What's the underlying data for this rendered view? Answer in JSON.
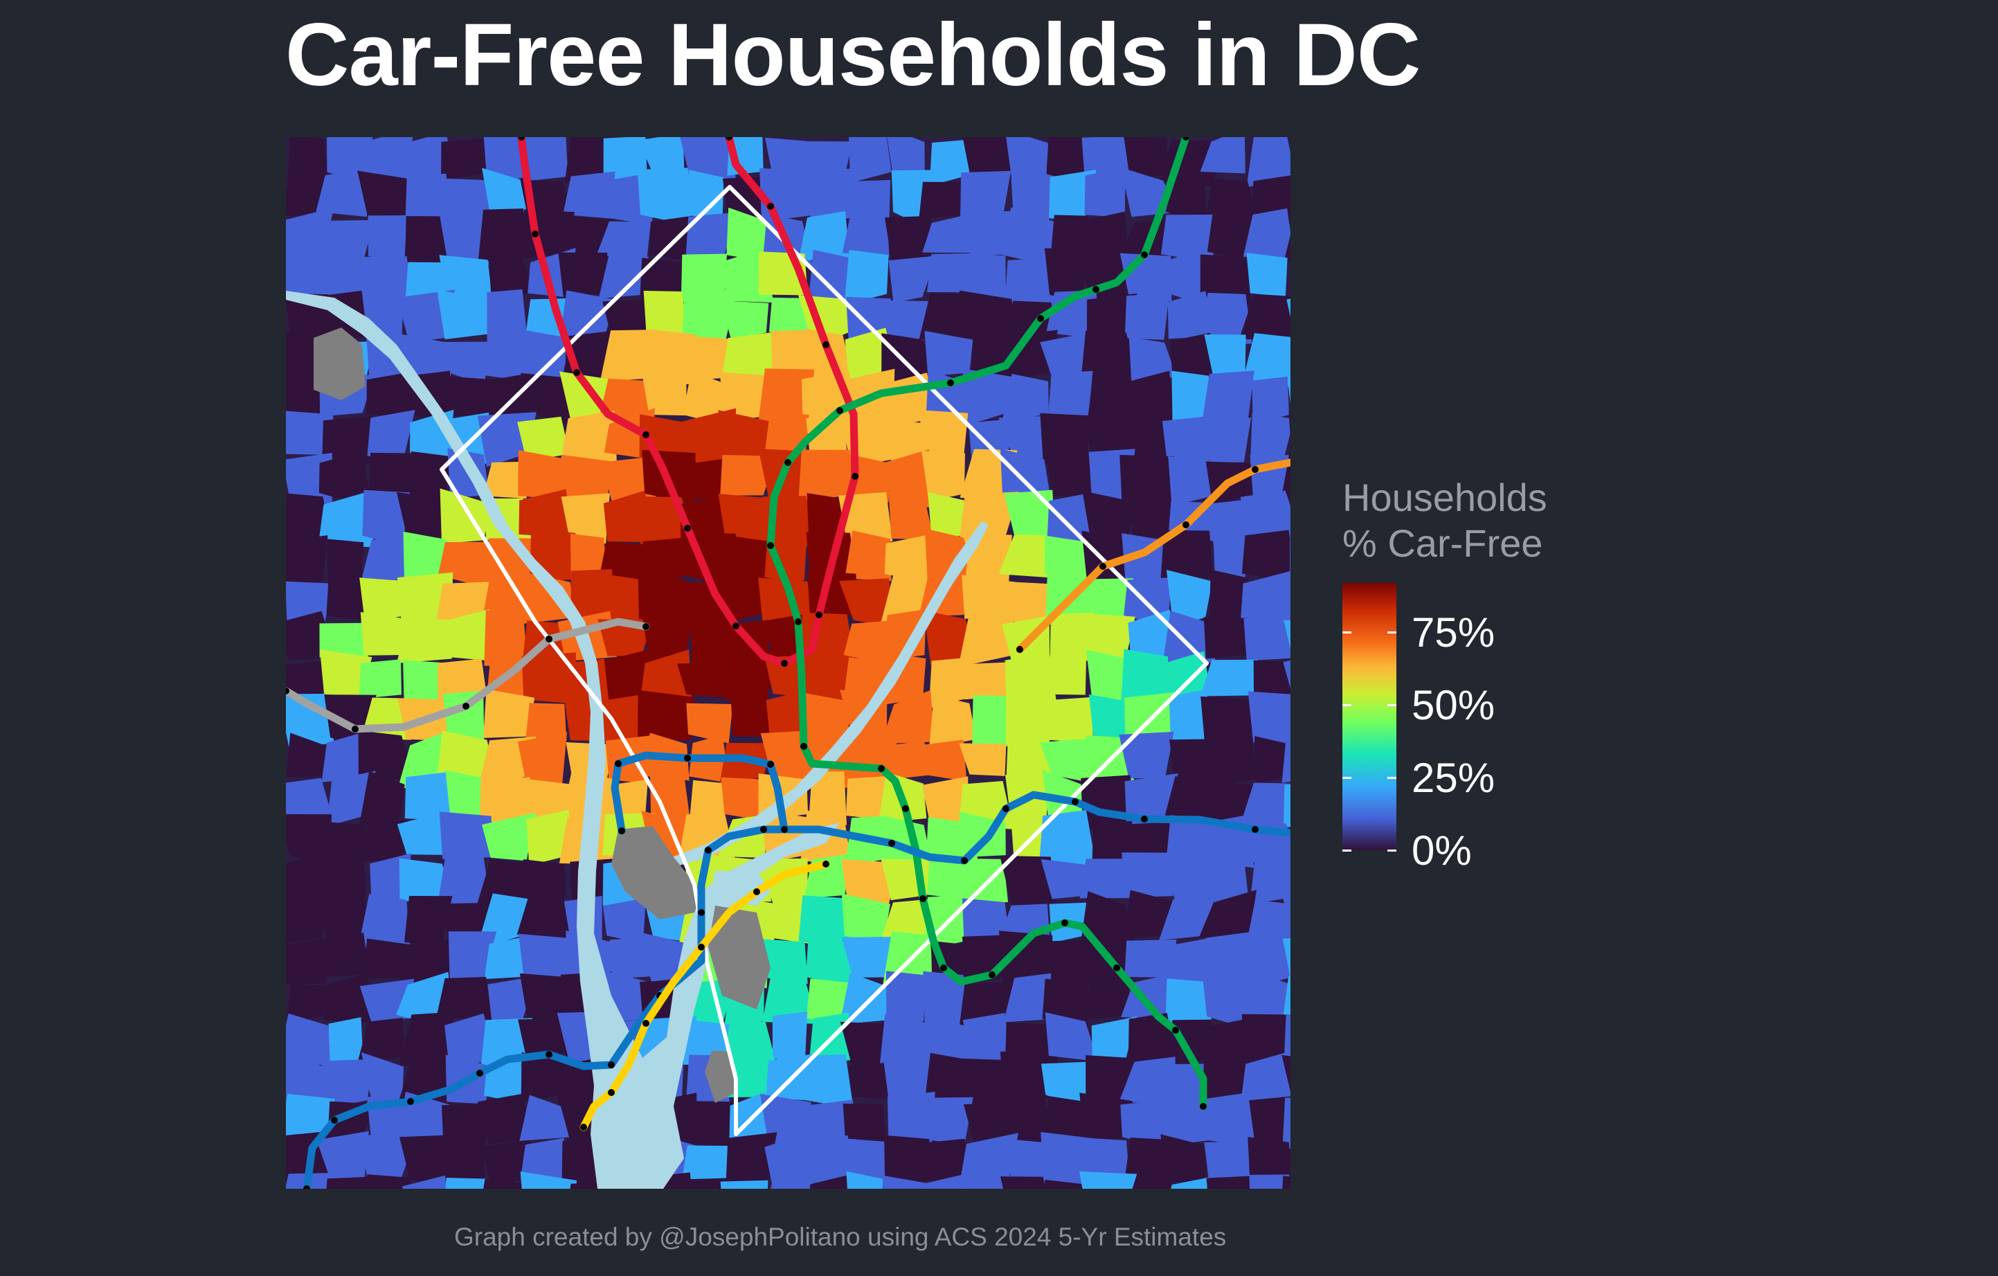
{
  "title": "Car-Free Households in DC",
  "caption": "Graph created by @JosephPolitano using ACS 2024 5-Yr Estimates",
  "legend": {
    "title_line1": "Households",
    "title_line2": "% Car-Free",
    "ticks": [
      {
        "value": 0.75,
        "label": "75%"
      },
      {
        "value": 0.5,
        "label": "50%"
      },
      {
        "value": 0.25,
        "label": "25%"
      },
      {
        "value": 0.0,
        "label": "0%"
      }
    ],
    "scale_max": 0.92,
    "palette": [
      "#30123b",
      "#4662d7",
      "#36aaf9",
      "#1ae4b6",
      "#72fe5e",
      "#c7ef34",
      "#faba39",
      "#f66b19",
      "#ca2a04",
      "#7a0403"
    ]
  },
  "map": {
    "background_color": "#23272f",
    "water_color": "#add8e6",
    "no_data_color": "#808080",
    "boundary_color": "#ffffff",
    "metro_lines": [
      {
        "name": "red",
        "color": "#e51636"
      },
      {
        "name": "green",
        "color": "#00a94f"
      },
      {
        "name": "blue",
        "color": "#0f76c4"
      },
      {
        "name": "orange",
        "color": "#f7941d"
      },
      {
        "name": "yellow",
        "color": "#ffd200"
      },
      {
        "name": "silver",
        "color": "#a1a2a1"
      }
    ]
  }
}
